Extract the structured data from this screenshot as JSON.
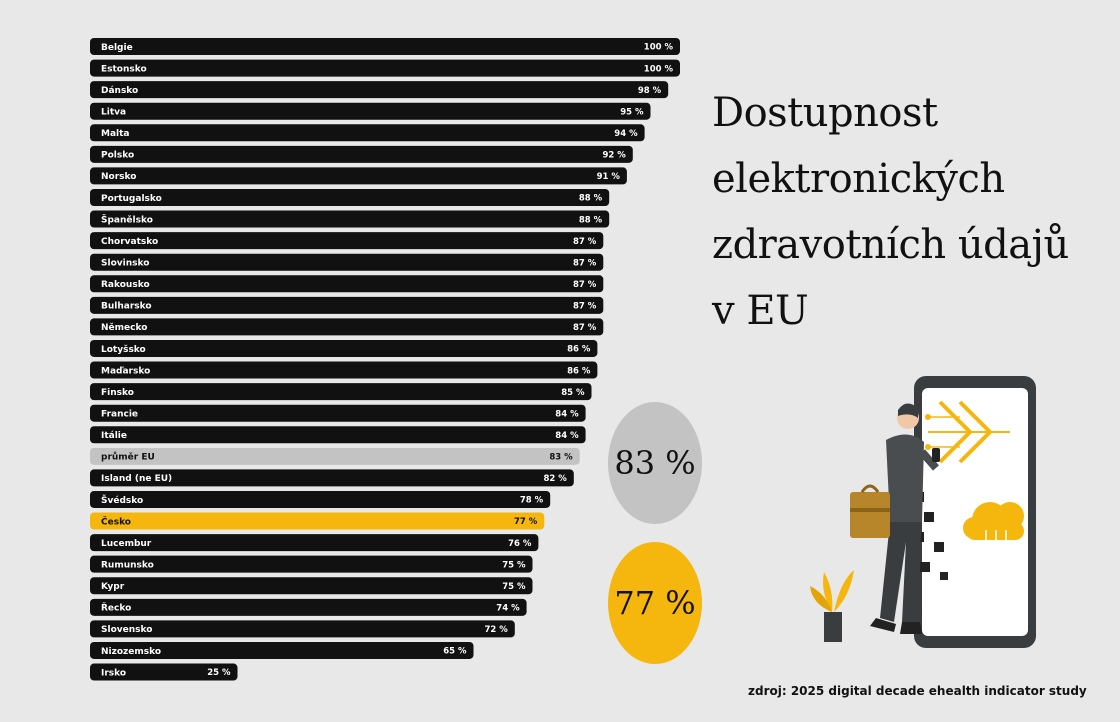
{
  "title_lines": [
    "Dostupnost",
    "elektronických",
    "zdravotních údajů",
    "v EU"
  ],
  "highlights": {
    "eu_average": "83 %",
    "czechia": "77 %"
  },
  "source": "zdroj: 2025 digital decade ehealth indicator study",
  "colors": {
    "bar": "#111111",
    "eu_average": "#c3c3c3",
    "czechia": "#f5b70e",
    "background": "#e8e8e8"
  },
  "illustration": {
    "icons": [
      "woman-with-briefcase-icon",
      "smartphone-icon",
      "cloud-icon",
      "plant-icon"
    ]
  },
  "chart_data": {
    "type": "bar",
    "orientation": "horizontal",
    "unit": "%",
    "xlim": [
      0,
      100
    ],
    "grid": false,
    "categories": [
      "Belgie",
      "Estonsko",
      "Dánsko",
      "Litva",
      "Malta",
      "Polsko",
      "Norsko",
      "Portugalsko",
      "Španělsko",
      "Chorvatsko",
      "Slovinsko",
      "Rakousko",
      "Bulharsko",
      "Německo",
      "Lotyšsko",
      "Maďarsko",
      "Finsko",
      "Francie",
      "Itálie",
      "průměr EU",
      "Island (ne EU)",
      "Švédsko",
      "Česko",
      "Lucembur",
      "Rumunsko",
      "Kypr",
      "Řecko",
      "Slovensko",
      "Nizozemsko",
      "Irsko"
    ],
    "values": [
      100,
      100,
      98,
      95,
      94,
      92,
      91,
      88,
      88,
      87,
      87,
      87,
      87,
      87,
      86,
      86,
      85,
      84,
      84,
      83,
      82,
      78,
      77,
      76,
      75,
      75,
      74,
      72,
      65,
      25
    ],
    "value_labels": [
      "100 %",
      "100 %",
      "98 %",
      "95 %",
      "94 %",
      "92 %",
      "91 %",
      "88 %",
      "88 %",
      "87 %",
      "87 %",
      "87 %",
      "87 %",
      "87 %",
      "86 %",
      "86 %",
      "85 %",
      "84 %",
      "84 %",
      "83 %",
      "82 %",
      "78 %",
      "77 %",
      "76 %",
      "75 %",
      "75 %",
      "74 %",
      "72 %",
      "65 %",
      "25 %"
    ],
    "highlight": {
      "průměr EU": "eu_average",
      "Česko": "czechia"
    }
  }
}
